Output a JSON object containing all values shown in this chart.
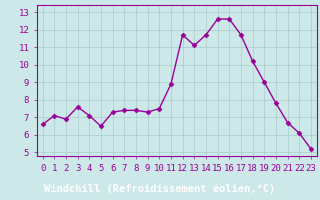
{
  "x": [
    0,
    1,
    2,
    3,
    4,
    5,
    6,
    7,
    8,
    9,
    10,
    11,
    12,
    13,
    14,
    15,
    16,
    17,
    18,
    19,
    20,
    21,
    22,
    23
  ],
  "y": [
    6.6,
    7.1,
    6.9,
    7.6,
    7.1,
    6.5,
    7.3,
    7.4,
    7.4,
    7.3,
    7.5,
    8.9,
    11.7,
    11.1,
    11.7,
    12.6,
    12.6,
    11.7,
    10.2,
    9.0,
    7.8,
    6.7,
    6.1,
    5.2
  ],
  "line_color": "#990099",
  "marker": "D",
  "marker_size": 2.5,
  "bg_color": "#cce8e8",
  "xlabel_bg_color": "#000099",
  "grid_color": "#aacccc",
  "xlabel": "Windchill (Refroidissement éolien,°C)",
  "xlabel_color": "#ffffff",
  "xlabel_fontsize": 7.5,
  "ylabel_ticks": [
    5,
    6,
    7,
    8,
    9,
    10,
    11,
    12,
    13
  ],
  "xtick_labels": [
    "0",
    "1",
    "2",
    "3",
    "4",
    "5",
    "6",
    "7",
    "8",
    "9",
    "10",
    "11",
    "12",
    "13",
    "14",
    "15",
    "16",
    "17",
    "18",
    "19",
    "20",
    "21",
    "22",
    "23"
  ],
  "ylim": [
    4.8,
    13.4
  ],
  "xlim": [
    -0.5,
    23.5
  ],
  "tick_color": "#990099",
  "tick_fontsize": 6.5,
  "spine_color": "#990099",
  "line_width": 1.0
}
